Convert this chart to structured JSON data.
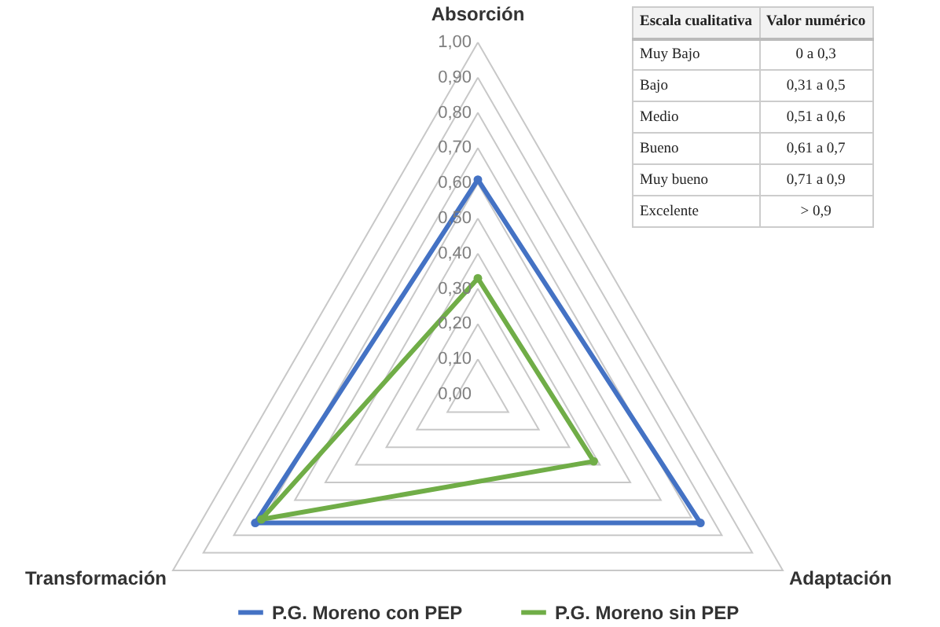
{
  "chart_data": {
    "type": "radar",
    "categories": [
      "Absorción",
      "Adaptación",
      "Transformación"
    ],
    "series": [
      {
        "name": "P.G. Moreno con PEP",
        "color": "#4472c4",
        "values": [
          0.61,
          0.73,
          0.73
        ]
      },
      {
        "name": "P.G. Moreno sin PEP",
        "color": "#70ad47",
        "values": [
          0.33,
          0.38,
          0.71
        ]
      }
    ],
    "ylim": [
      0,
      1
    ],
    "yticks": [
      {
        "value": 0,
        "label": "0,00"
      },
      {
        "value": 0.1,
        "label": "0,10"
      },
      {
        "value": 0.2,
        "label": "0,20"
      },
      {
        "value": 0.3,
        "label": "0,30"
      },
      {
        "value": 0.4,
        "label": "0,40"
      },
      {
        "value": 0.5,
        "label": "0,50"
      },
      {
        "value": 0.6,
        "label": "0,60"
      },
      {
        "value": 0.7,
        "label": "0,70"
      },
      {
        "value": 0.8,
        "label": "0,80"
      },
      {
        "value": 0.9,
        "label": "0,90"
      },
      {
        "value": 1,
        "label": "1,00"
      }
    ],
    "grid": true,
    "legend": "bottom",
    "marker": "circle",
    "line_style": "solid",
    "annotations": [
      "Escala cualitativa",
      "Valor numérico",
      "Muy Bajo",
      "0 a 0,3",
      "Bajo",
      "0,31 a 0,5",
      "Medio",
      "0,51 a 0,6",
      "Bueno",
      "0,61 a 0,7",
      "Muy bueno",
      "0,71 a 0,9",
      "Excelente",
      "> 0,9"
    ]
  }
}
